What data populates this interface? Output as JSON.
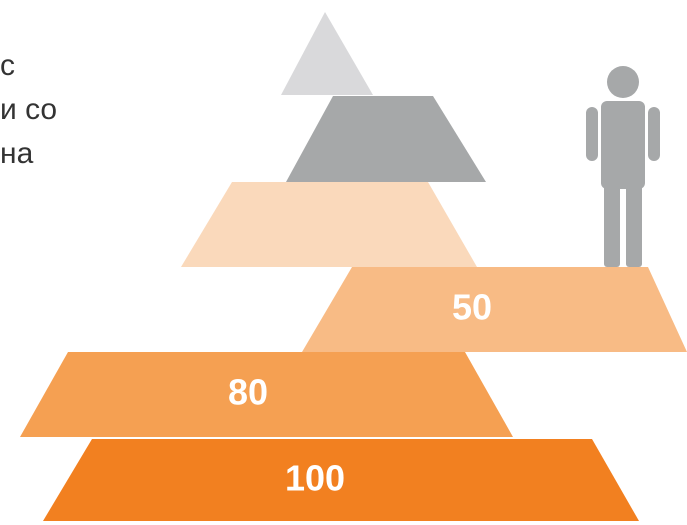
{
  "text_fragment": {
    "lines": [
      "с",
      "и со",
      "на"
    ]
  },
  "pyramid": {
    "tiers": [
      {
        "id": "top",
        "label": "",
        "color": "#d9d9db"
      },
      {
        "id": "gray",
        "label": "",
        "color": "#a6a8a9"
      },
      {
        "id": "peach",
        "label": "",
        "color": "#fad9bb"
      },
      {
        "id": "tier-50",
        "label": "50",
        "color": "#f8bb85"
      },
      {
        "id": "tier-80",
        "label": "80",
        "color": "#f5a052"
      },
      {
        "id": "tier-100",
        "label": "100",
        "color": "#f28020"
      }
    ]
  },
  "person_icon": {
    "name": "person-icon",
    "color": "#a6a8a9"
  }
}
